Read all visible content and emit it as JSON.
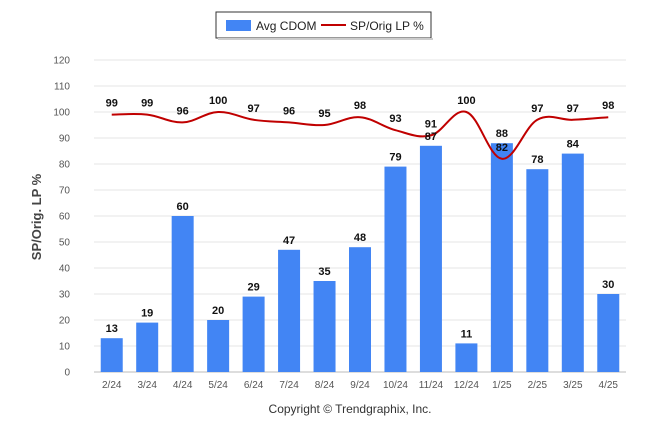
{
  "chart_data": {
    "type": "bar",
    "categories": [
      "2/24",
      "3/24",
      "4/24",
      "5/24",
      "6/24",
      "7/24",
      "8/24",
      "9/24",
      "10/24",
      "11/24",
      "12/24",
      "1/25",
      "2/25",
      "3/25",
      "4/25"
    ],
    "series": [
      {
        "name": "Avg CDOM",
        "type": "bar",
        "color": "#4285f4",
        "values": [
          13,
          19,
          60,
          20,
          29,
          47,
          35,
          48,
          79,
          87,
          11,
          88,
          78,
          84,
          30
        ]
      },
      {
        "name": "SP/Orig LP %",
        "type": "line",
        "color": "#c00000",
        "values": [
          99,
          99,
          96,
          100,
          97,
          96,
          95,
          98,
          93,
          91,
          100,
          82,
          97,
          97,
          98
        ]
      }
    ],
    "ylabel": "SP/Orig. LP %",
    "ylim": [
      0,
      120
    ],
    "yticks": [
      0,
      10,
      20,
      30,
      40,
      50,
      60,
      70,
      80,
      90,
      100,
      110,
      120
    ],
    "grid": true,
    "legend_position": "top-center",
    "footer": "Copyright © Trendgraphix, Inc."
  }
}
